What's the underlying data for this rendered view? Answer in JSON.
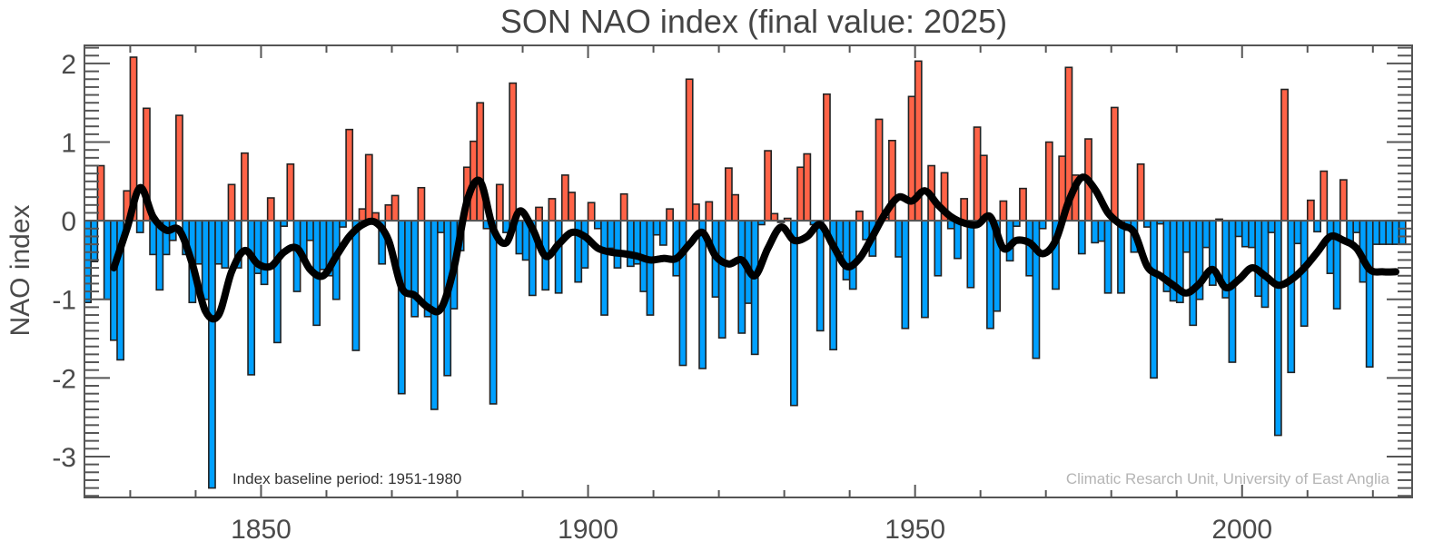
{
  "chart_data": {
    "type": "bar",
    "title": "SON NAO index (final value: 2025)",
    "xlabel": "",
    "ylabel": "NAO index",
    "xlim": [
      1823,
      2026
    ],
    "ylim": [
      -3.52,
      2.23
    ],
    "x_ticks": [
      1850,
      1900,
      1950,
      2000
    ],
    "x_tick_labels": [
      "1850",
      "1900",
      "1950",
      "2000"
    ],
    "y_ticks": [
      -3,
      -2,
      -1,
      0,
      1,
      2
    ],
    "y_tick_labels": [
      "-3",
      "-2",
      "-1",
      "0",
      "1",
      "2"
    ],
    "grid": false,
    "legend": "none",
    "annotations": {
      "baseline": "Index baseline period: 1951-1980",
      "credit": "Climatic Resarch Unit, University of East Anglia"
    },
    "colors": {
      "positive": "#ff6347",
      "negative": "#00a0ff",
      "smoothed": "#000000",
      "axis": "#555555"
    },
    "start_year": 1823,
    "series": [
      {
        "name": "SON NAO index",
        "values": [
          -1.04,
          -0.52,
          0.7,
          -1.0,
          -1.52,
          -1.77,
          0.38,
          2.08,
          -0.15,
          1.43,
          -0.43,
          -0.88,
          -0.43,
          -0.25,
          1.34,
          -0.43,
          -1.04,
          -0.55,
          -1.0,
          -3.4,
          -0.55,
          -0.6,
          0.46,
          -0.6,
          0.86,
          -1.96,
          -0.67,
          -0.81,
          0.29,
          -1.55,
          -0.07,
          0.72,
          -0.9,
          -0.51,
          -0.25,
          -1.33,
          -0.62,
          -0.7,
          -1.0,
          -0.08,
          1.16,
          -1.65,
          0.15,
          0.84,
          0.1,
          -0.55,
          0.2,
          0.32,
          -2.2,
          -0.92,
          -1.22,
          0.42,
          -1.22,
          -2.4,
          -0.15,
          -1.97,
          -1.12,
          -0.38,
          0.68,
          1.01,
          1.5,
          -0.1,
          -2.33,
          0.46,
          -0.15,
          1.75,
          -0.42,
          -0.5,
          -0.95,
          0.17,
          -0.88,
          0.28,
          -0.92,
          0.58,
          0.36,
          -0.78,
          -0.6,
          0.23,
          -0.1,
          -1.2,
          -0.35,
          -0.6,
          0.34,
          -0.58,
          -0.55,
          -0.9,
          -1.2,
          -0.18,
          -0.31,
          0.15,
          -0.7,
          -1.84,
          1.8,
          0.21,
          -1.88,
          0.24,
          -0.97,
          -1.49,
          0.67,
          0.33,
          -1.43,
          -1.05,
          -1.7,
          -0.05,
          0.89,
          0.09,
          -0.02,
          0.03,
          -2.35,
          0.68,
          0.85,
          -0.05,
          -1.4,
          1.61,
          -1.64,
          -0.4,
          -0.75,
          -0.87,
          0.12,
          -0.24,
          -0.45,
          1.29,
          0.04,
          1.02,
          -0.46,
          -1.37,
          1.58,
          2.03,
          -1.23,
          0.7,
          -0.7,
          0.61,
          -0.1,
          -0.48,
          0.28,
          -0.85,
          1.19,
          0.83,
          -1.37,
          -1.15,
          0.25,
          -0.51,
          -0.07,
          0.41,
          -0.7,
          -1.75,
          -0.1,
          1.0,
          -0.87,
          0.82,
          1.95,
          0.58,
          -0.42,
          1.04,
          -0.28,
          -0.26,
          -0.92,
          1.44,
          -0.92,
          -0.12,
          -0.4,
          0.72,
          -0.08,
          -2.0,
          -0.04,
          -0.9,
          -1.02,
          -1.04,
          -0.4,
          -1.33,
          -1.0,
          -0.34,
          -0.82,
          0.02,
          -0.98,
          -1.8,
          -0.2,
          -0.33,
          -0.34,
          -0.96,
          -1.1,
          -0.15,
          -2.73,
          1.67,
          -1.93,
          -0.29,
          -1.34,
          0.26,
          -0.14,
          0.63,
          -0.67,
          -1.12,
          0.52,
          -0.28,
          -0.15,
          -0.78,
          -1.86,
          -0.3,
          -0.3,
          -0.3,
          -0.3,
          -0.3
        ]
      },
      {
        "name": "Smoothed",
        "type": "line",
        "x": [
          1827,
          1829,
          1831,
          1833,
          1835,
          1837,
          1839,
          1841,
          1843,
          1845,
          1847,
          1849,
          1851,
          1853,
          1855,
          1857,
          1859,
          1861,
          1863,
          1865,
          1867,
          1869,
          1871,
          1873,
          1875,
          1877,
          1879,
          1881,
          1883,
          1885,
          1887,
          1889,
          1891,
          1893,
          1895,
          1897,
          1899,
          1901,
          1903,
          1905,
          1907,
          1909,
          1911,
          1913,
          1915,
          1917,
          1919,
          1921,
          1923,
          1925,
          1927,
          1929,
          1931,
          1933,
          1935,
          1937,
          1939,
          1941,
          1943,
          1945,
          1947,
          1949,
          1951,
          1953,
          1955,
          1957,
          1959,
          1961,
          1963,
          1965,
          1967,
          1969,
          1971,
          1973,
          1975,
          1977,
          1979,
          1981,
          1983,
          1985,
          1987,
          1989,
          1991,
          1993,
          1995,
          1997,
          1999,
          2001,
          2003,
          2005,
          2007,
          2009,
          2011,
          2013,
          2015,
          2017,
          2019,
          2021,
          2023
        ],
        "values": [
          -0.6,
          -0.1,
          0.42,
          0.05,
          -0.12,
          -0.12,
          -0.55,
          -1.15,
          -1.2,
          -0.65,
          -0.38,
          -0.55,
          -0.58,
          -0.4,
          -0.35,
          -0.62,
          -0.7,
          -0.45,
          -0.2,
          -0.05,
          -0.02,
          -0.25,
          -0.85,
          -0.95,
          -1.1,
          -1.12,
          -0.6,
          0.25,
          0.5,
          -0.1,
          -0.28,
          0.12,
          -0.1,
          -0.45,
          -0.3,
          -0.15,
          -0.2,
          -0.35,
          -0.4,
          -0.42,
          -0.45,
          -0.5,
          -0.48,
          -0.48,
          -0.3,
          -0.15,
          -0.45,
          -0.55,
          -0.5,
          -0.7,
          -0.35,
          -0.08,
          -0.25,
          -0.2,
          -0.05,
          -0.32,
          -0.58,
          -0.48,
          -0.2,
          0.1,
          0.3,
          0.25,
          0.38,
          0.2,
          0.05,
          -0.03,
          -0.05,
          0.05,
          -0.35,
          -0.25,
          -0.28,
          -0.42,
          -0.25,
          0.25,
          0.55,
          0.4,
          0.1,
          -0.05,
          -0.15,
          -0.58,
          -0.7,
          -0.82,
          -0.92,
          -0.8,
          -0.62,
          -0.85,
          -0.75,
          -0.6,
          -0.7,
          -0.82,
          -0.75,
          -0.6,
          -0.4,
          -0.2,
          -0.25,
          -0.35,
          -0.62,
          -0.65,
          -0.65
        ]
      }
    ]
  }
}
